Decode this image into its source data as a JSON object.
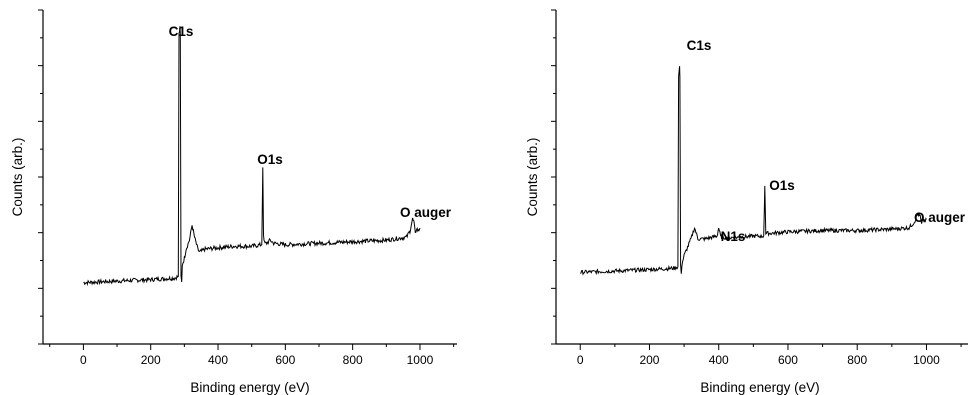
{
  "chart_data": [
    {
      "type": "line",
      "xlabel": "Binding energy (eV)",
      "ylabel": "Counts (arb.)",
      "xlim": [
        -120,
        1110
      ],
      "ylim": [
        0,
        100
      ],
      "x_ticks": [
        0,
        200,
        400,
        600,
        800,
        1000
      ],
      "y_tick_labels_shown": false,
      "grid": false,
      "series": [
        {
          "x": [
            0,
            100,
            200,
            270,
            282,
            284,
            287,
            288,
            290,
            292,
            294,
            300,
            305,
            315,
            323,
            330,
            340,
            345,
            360,
            400,
            450,
            500,
            530,
            533,
            535,
            538,
            545,
            555,
            565,
            600,
            700,
            800,
            900,
            960,
            970,
            978,
            982,
            986,
            990,
            995,
            1000
          ],
          "y": [
            14,
            14.5,
            15,
            15.5,
            16,
            96,
            98,
            96,
            16,
            14,
            20,
            22,
            25,
            28,
            33,
            29,
            25,
            24,
            25,
            25.5,
            26,
            26,
            26.5,
            52,
            30,
            27,
            27,
            28,
            27,
            26.5,
            27,
            27.5,
            28,
            29,
            31,
            35,
            34,
            30,
            32,
            31,
            32
          ]
        }
      ],
      "annotations": [
        {
          "text": "C1s",
          "x": 285,
          "y": 98
        },
        {
          "text": "O1s",
          "x": 532,
          "y": 52
        },
        {
          "text": "O auger",
          "x": 980,
          "y": 35
        }
      ]
    },
    {
      "type": "line",
      "xlabel": "Binding energy (eV)",
      "ylabel": "Counts (arb.)",
      "xlim": [
        -70,
        1120
      ],
      "ylim": [
        0,
        100
      ],
      "x_ticks": [
        0,
        200,
        400,
        600,
        800,
        1000
      ],
      "y_tick_labels_shown": false,
      "grid": false,
      "series": [
        {
          "x": [
            0,
            100,
            200,
            270,
            282,
            284,
            287,
            288,
            290,
            292,
            294,
            300,
            310,
            320,
            330,
            340,
            360,
            395,
            400,
            405,
            410,
            420,
            450,
            500,
            530,
            533,
            536,
            540,
            550,
            600,
            700,
            800,
            900,
            950,
            965,
            975,
            982,
            986,
            990,
            995,
            1000
          ],
          "y": [
            16,
            16.5,
            17,
            17.5,
            18,
            86,
            90,
            86,
            18,
            16,
            19,
            22,
            25,
            28,
            32,
            28,
            28,
            29,
            32,
            29,
            28.5,
            28.5,
            28.5,
            29,
            29,
            47,
            30,
            30,
            30,
            30.5,
            31,
            31,
            31.5,
            32,
            34,
            37,
            36,
            33,
            35,
            34,
            35
          ]
        }
      ],
      "annotations": [
        {
          "text": "C1s",
          "x": 285,
          "y": 90
        },
        {
          "text": "N1s",
          "x": 402,
          "y": 33
        },
        {
          "text": "O1s",
          "x": 532,
          "y": 47
        },
        {
          "text": "O auger",
          "x": 980,
          "y": 37
        }
      ]
    }
  ]
}
